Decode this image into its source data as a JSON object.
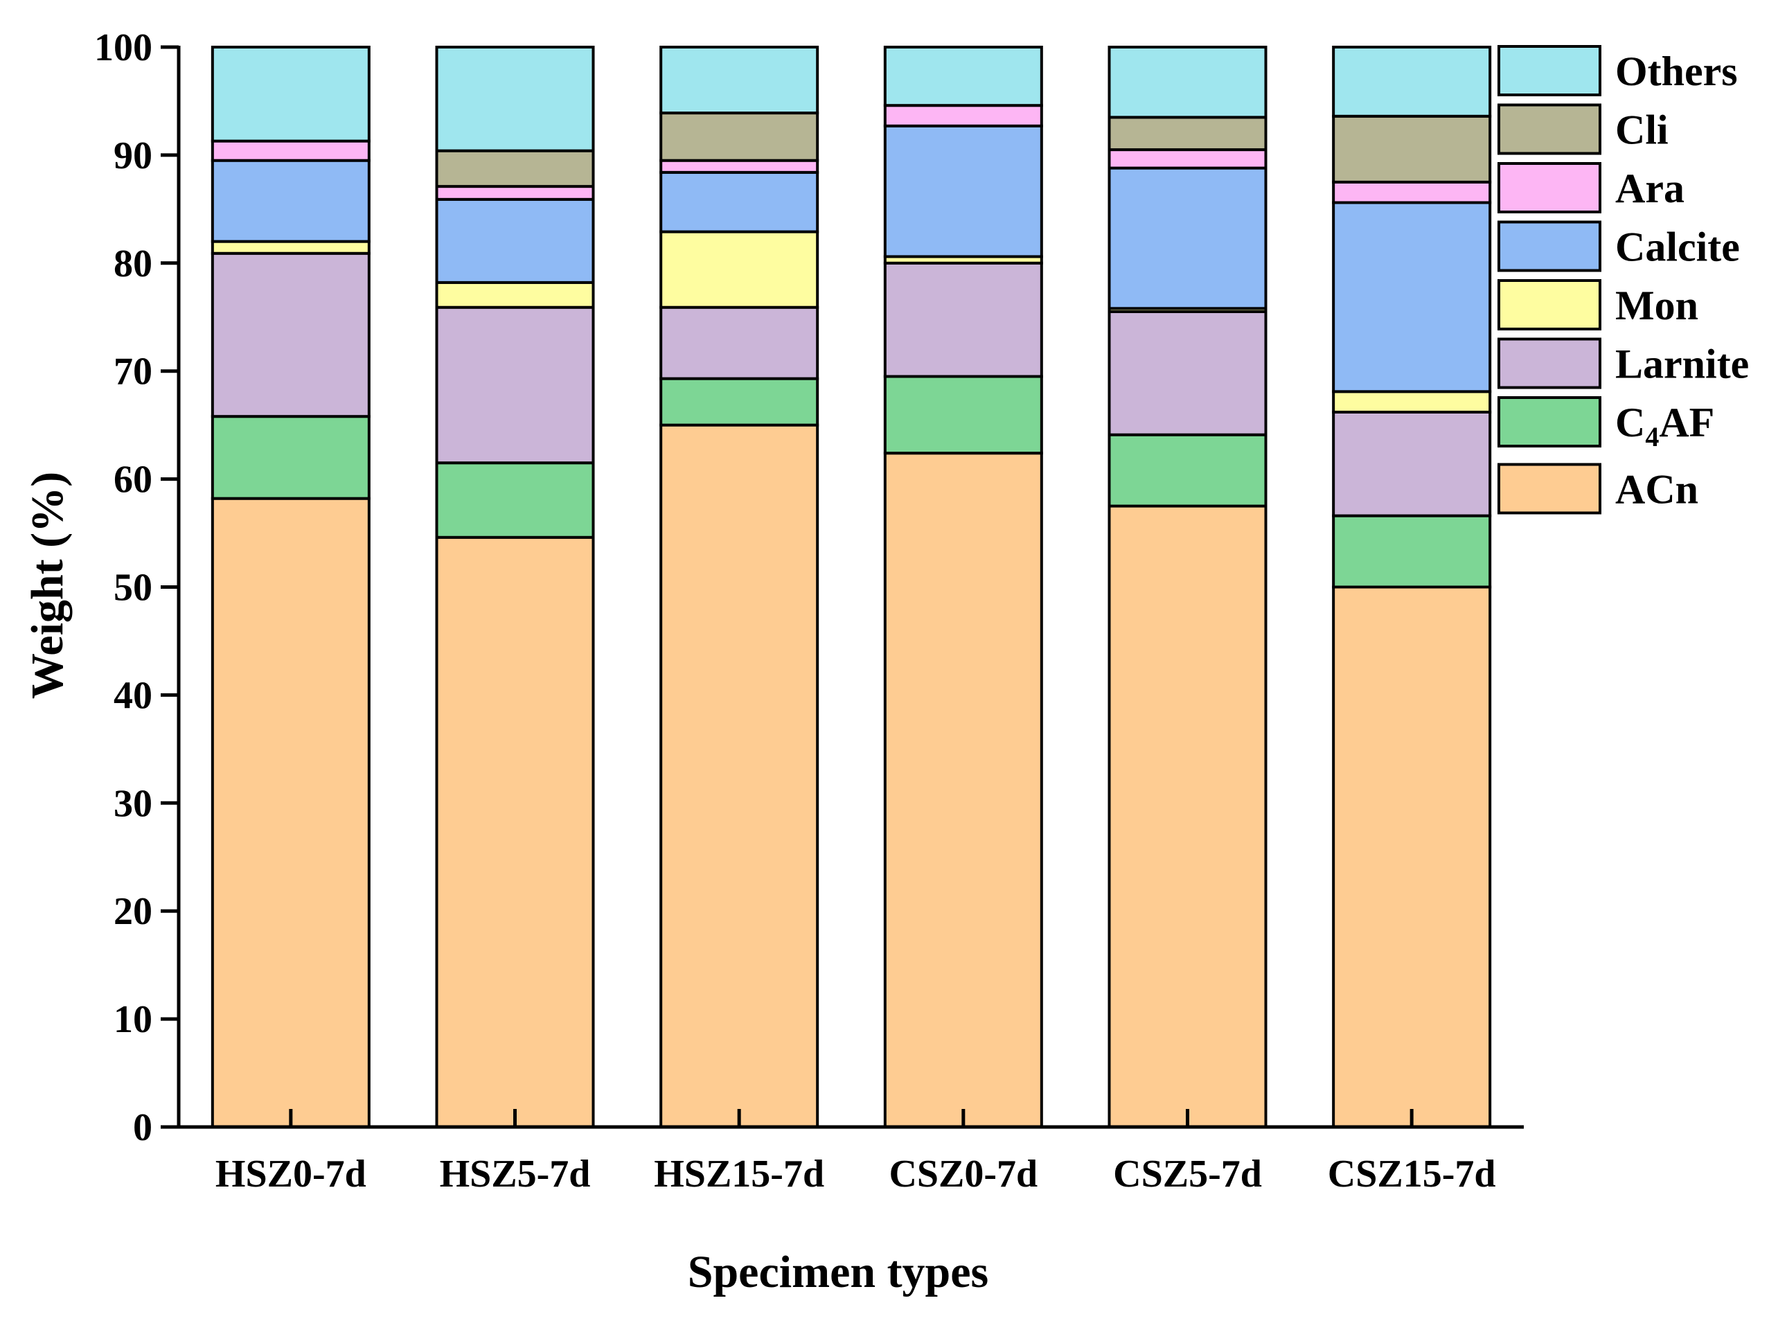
{
  "chart_data": {
    "type": "bar",
    "stacked": true,
    "title": "",
    "xlabel": "Specimen types",
    "ylabel": "Weight (%)",
    "ylim": [
      0,
      100
    ],
    "yticks": [
      0,
      10,
      20,
      30,
      40,
      50,
      60,
      70,
      80,
      90,
      100
    ],
    "grid": false,
    "legend_position": "right",
    "categories": [
      "HSZ0-7d",
      "HSZ5-7d",
      "HSZ15-7d",
      "CSZ0-7d",
      "CSZ5-7d",
      "CSZ15-7d"
    ],
    "series": [
      {
        "name": "ACn",
        "label_main": "ACn",
        "label_sub": "",
        "label_tail": "",
        "color": "#FECC92",
        "values": [
          58.2,
          54.6,
          65.0,
          62.4,
          57.5,
          50.0
        ]
      },
      {
        "name": "C4AF",
        "label_main": "C",
        "label_sub": "4",
        "label_tail": "AF",
        "color": "#7DD695",
        "values": [
          7.6,
          6.9,
          4.3,
          7.1,
          6.6,
          6.6
        ]
      },
      {
        "name": "Larnite",
        "label_main": "Larnite",
        "label_sub": "",
        "label_tail": "",
        "color": "#CBB5D8",
        "values": [
          15.1,
          14.4,
          6.6,
          10.5,
          11.4,
          9.6
        ]
      },
      {
        "name": "Mon",
        "label_main": "Mon",
        "label_sub": "",
        "label_tail": "",
        "color": "#FEFDA0",
        "values": [
          1.1,
          2.3,
          7.0,
          0.6,
          0.3,
          1.9
        ]
      },
      {
        "name": "Calcite",
        "label_main": "Calcite",
        "label_sub": "",
        "label_tail": "",
        "color": "#8FBAF5",
        "values": [
          7.5,
          7.7,
          5.5,
          12.1,
          13.0,
          17.5
        ]
      },
      {
        "name": "Ara",
        "label_main": "Ara",
        "label_sub": "",
        "label_tail": "",
        "color": "#FDB6F4",
        "values": [
          1.8,
          1.2,
          1.1,
          1.9,
          1.7,
          1.9
        ]
      },
      {
        "name": "Cli",
        "label_main": "Cli",
        "label_sub": "",
        "label_tail": "",
        "color": "#B6B594",
        "values": [
          0.0,
          3.3,
          4.4,
          0.0,
          3.0,
          6.1
        ]
      },
      {
        "name": "Others",
        "label_main": "Others",
        "label_sub": "",
        "label_tail": "",
        "color": "#9FE6EE",
        "values": [
          8.7,
          9.6,
          6.1,
          5.4,
          6.5,
          6.4
        ]
      }
    ]
  }
}
